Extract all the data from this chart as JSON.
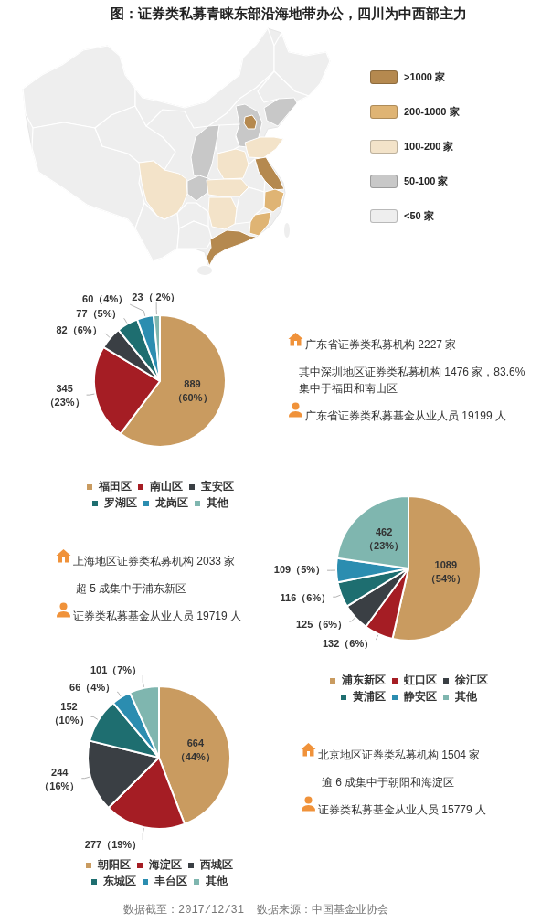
{
  "chart_data": [
    {
      "type": "other",
      "title": "图：证券类私募青睐东部沿海地带办公，四川为中西部主力",
      "categories": [
        ">1000 家",
        "200-1000 家",
        "100-200 家",
        "50-100 家",
        "<50 家"
      ],
      "colors": [
        "#b5894f",
        "#dfb474",
        "#f3e3c9",
        "#c8c8c8",
        "#eeeeee"
      ]
    },
    {
      "type": "pie",
      "categories": [
        "福田区",
        "南山区",
        "宝安区",
        "罗湖区",
        "龙岗区",
        "其他"
      ],
      "values": [
        889,
        345,
        82,
        77,
        60,
        23
      ],
      "colors": [
        "#c99b60",
        "#a51d24",
        "#3a3f44",
        "#1e6e70",
        "#2b8db0",
        "#7fb6af"
      ],
      "value_labels": [
        "889\n（60%）",
        "345\n（23%）",
        "82（6%）",
        "77（5%）",
        "60（4%）",
        "23（ 2%）"
      ],
      "legend": "bottom",
      "annotations": [
        "广东省证券类私募机构 2227 家",
        "其中深圳地区证券类私募机构 1476 家，83.6%集中于福田和南山区",
        "广东省证券类私募基金从业人员 19199 人"
      ]
    },
    {
      "type": "pie",
      "categories": [
        "浦东新区",
        "虹口区",
        "徐汇区",
        "黄浦区",
        "静安区",
        "其他"
      ],
      "values": [
        1089,
        132,
        125,
        116,
        109,
        462
      ],
      "colors": [
        "#c99b60",
        "#a51d24",
        "#3a3f44",
        "#1e6e70",
        "#2b8db0",
        "#7fb6af"
      ],
      "value_labels": [
        "1089\n（54%）",
        "132（6%）",
        "125（6%）",
        "116（6%）",
        "109（5%）",
        "462\n（23%）"
      ],
      "legend": "bottom",
      "annotations": [
        "上海地区证券类私募机构 2033 家",
        "超 5 成集中于浦东新区",
        "证券类私募基金从业人员 19719 人"
      ]
    },
    {
      "type": "pie",
      "categories": [
        "朝阳区",
        "海淀区",
        "西城区",
        "东城区",
        "丰台区",
        "其他"
      ],
      "values": [
        664,
        277,
        244,
        152,
        66,
        101
      ],
      "colors": [
        "#c99b60",
        "#a51d24",
        "#3a3f44",
        "#1e6e70",
        "#2b8db0",
        "#7fb6af"
      ],
      "value_labels": [
        "664\n（44%）",
        "277（19%）",
        "244\n（16%）",
        "152\n（10%）",
        "66（4%）",
        "101（7%）"
      ],
      "legend": "bottom",
      "annotations": [
        "北京地区证券类私募机构 1504 家",
        "逾 6 成集中于朝阳和海淀区",
        "证券类私募基金从业人员 15779 人",
        "数据截至：2017/12/31",
        "数据来源：中国基金业协会"
      ]
    }
  ]
}
